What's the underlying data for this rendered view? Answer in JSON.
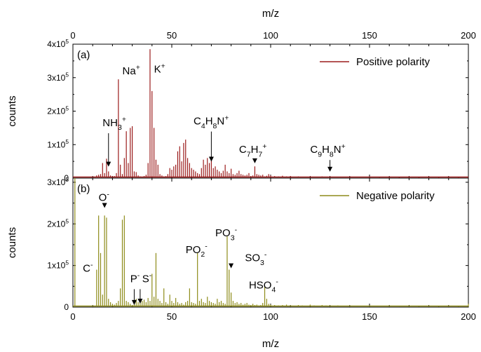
{
  "chart_data": [
    {
      "panel_label": "(a)",
      "type": "bar",
      "xlabel": "m/z",
      "ylabel": "counts",
      "xlim": [
        0,
        200
      ],
      "ylim": [
        0,
        400000
      ],
      "x_ticks": [
        "0",
        "50",
        "100",
        "150",
        "200"
      ],
      "y_ticks": [
        {
          "value": 0,
          "base": "0",
          "exp": ""
        },
        {
          "value": 100000,
          "base": "1x10",
          "exp": "5"
        },
        {
          "value": 200000,
          "base": "2x10",
          "exp": "5"
        },
        {
          "value": 300000,
          "base": "3x10",
          "exp": "5"
        },
        {
          "value": 400000,
          "base": "4x10",
          "exp": "5"
        }
      ],
      "legend": "Positive polarity",
      "legend_placement": "top-right",
      "color": "#9b1c1c",
      "series": [
        {
          "x": [
            12,
            13,
            14,
            15,
            16,
            17,
            18,
            19,
            20,
            21,
            22,
            23,
            24,
            25,
            26,
            27,
            28,
            29,
            30,
            31,
            32,
            33,
            34,
            35,
            36,
            37,
            38,
            39,
            40,
            41,
            42,
            43,
            44,
            45,
            46,
            47,
            48,
            49,
            50,
            51,
            52,
            53,
            54,
            55,
            56,
            57,
            58,
            59,
            60,
            61,
            62,
            63,
            64,
            65,
            66,
            67,
            68,
            69,
            70,
            71,
            72,
            73,
            74,
            75,
            76,
            77,
            78,
            79,
            80,
            81,
            82,
            83,
            84,
            85,
            86,
            87,
            88,
            89,
            90,
            91,
            92,
            93,
            94,
            95,
            96,
            97,
            98,
            99,
            100,
            102,
            104,
            106,
            108,
            110,
            112,
            114,
            116,
            118,
            120,
            122,
            124,
            126,
            128,
            130,
            132,
            134,
            136,
            138,
            140,
            145,
            150,
            155,
            160,
            165,
            170,
            175,
            180,
            185,
            190,
            195
          ],
          "y": [
            8000,
            10000,
            12000,
            45000,
            15000,
            58000,
            20000,
            8000,
            5000,
            6000,
            15000,
            295000,
            40000,
            12000,
            60000,
            140000,
            45000,
            150000,
            155000,
            20000,
            18000,
            8000,
            5000,
            4000,
            6000,
            10000,
            45000,
            385000,
            260000,
            150000,
            55000,
            40000,
            12000,
            8000,
            5000,
            6000,
            12000,
            30000,
            25000,
            35000,
            40000,
            80000,
            95000,
            50000,
            105000,
            115000,
            60000,
            45000,
            30000,
            25000,
            20000,
            15000,
            12000,
            30000,
            55000,
            40000,
            60000,
            45000,
            65000,
            30000,
            35000,
            25000,
            20000,
            15000,
            22000,
            40000,
            20000,
            15000,
            28000,
            12000,
            10000,
            15000,
            22000,
            12000,
            10000,
            8000,
            10000,
            15000,
            6000,
            8000,
            35000,
            12000,
            10000,
            8000,
            10000,
            5000,
            7000,
            12000,
            8000,
            6000,
            5000,
            7000,
            5000,
            6000,
            4000,
            5000,
            3000,
            4000,
            5000,
            3000,
            4000,
            5000,
            3000,
            4000,
            2500,
            3000,
            2500,
            2000,
            3000,
            2000,
            1500,
            1500,
            1000,
            1000,
            1000,
            800,
            800,
            600,
            600,
            500
          ]
        }
      ],
      "annotations": [
        {
          "x": 18,
          "y": 30000,
          "arrow": true,
          "parts": [
            [
              "NH",
              ""
            ],
            [
              "3",
              "sub"
            ],
            [
              "+",
              "sup"
            ]
          ],
          "tx": 15,
          "ty": 155000
        },
        {
          "x": 23,
          "y": 300000,
          "arrow": false,
          "parts": [
            [
              "Na",
              ""
            ],
            [
              "+",
              "sup"
            ]
          ],
          "tx": 25,
          "ty": 310000
        },
        {
          "x": 39,
          "y": 390000,
          "arrow": false,
          "parts": [
            [
              "K",
              ""
            ],
            [
              "+",
              "sup"
            ]
          ],
          "tx": 41,
          "ty": 315000
        },
        {
          "x": 70,
          "y": 45000,
          "arrow": true,
          "parts": [
            [
              "C",
              ""
            ],
            [
              "4",
              "sub"
            ],
            [
              "H",
              ""
            ],
            [
              "8",
              "sub"
            ],
            [
              "N",
              ""
            ],
            [
              "+",
              "sup"
            ]
          ],
          "tx": 61,
          "ty": 160000
        },
        {
          "x": 92,
          "y": 40000,
          "arrow": true,
          "parts": [
            [
              "C",
              ""
            ],
            [
              "7",
              "sub"
            ],
            [
              "H",
              ""
            ],
            [
              "7",
              "sub"
            ],
            [
              "+",
              "sup"
            ]
          ],
          "tx": 84,
          "ty": 75000
        },
        {
          "x": 130,
          "y": 15000,
          "arrow": true,
          "parts": [
            [
              "C",
              ""
            ],
            [
              "9",
              "sub"
            ],
            [
              "H",
              ""
            ],
            [
              "8",
              "sub"
            ],
            [
              "N",
              ""
            ],
            [
              "+",
              "sup"
            ]
          ],
          "tx": 120,
          "ty": 75000
        }
      ]
    },
    {
      "panel_label": "(b)",
      "type": "bar",
      "xlabel": "m/z",
      "ylabel": "counts",
      "xlim": [
        0,
        200
      ],
      "ylim": [
        0,
        310000
      ],
      "x_ticks": [
        "0",
        "50",
        "100",
        "150",
        "200"
      ],
      "y_ticks": [
        {
          "value": 0,
          "base": "0",
          "exp": ""
        },
        {
          "value": 100000,
          "base": "1x10",
          "exp": "5"
        },
        {
          "value": 200000,
          "base": "2x10",
          "exp": "5"
        },
        {
          "value": 300000,
          "base": "3x10",
          "exp": "5"
        }
      ],
      "legend": "Negative polarity",
      "legend_placement": "top-right",
      "color": "#8e8c1a",
      "series": [
        {
          "x": [
            1,
            12,
            13,
            14,
            15,
            16,
            17,
            18,
            19,
            20,
            21,
            22,
            23,
            24,
            25,
            26,
            27,
            28,
            29,
            30,
            31,
            32,
            33,
            34,
            35,
            36,
            37,
            38,
            39,
            40,
            41,
            42,
            43,
            44,
            45,
            46,
            47,
            48,
            49,
            50,
            51,
            52,
            53,
            54,
            55,
            56,
            57,
            58,
            59,
            60,
            61,
            62,
            63,
            64,
            65,
            66,
            67,
            68,
            69,
            70,
            71,
            72,
            73,
            74,
            75,
            76,
            77,
            78,
            79,
            80,
            81,
            82,
            83,
            84,
            85,
            86,
            87,
            88,
            89,
            90,
            91,
            92,
            93,
            94,
            95,
            96,
            97,
            98,
            99,
            100,
            102,
            104,
            106,
            108,
            110,
            112,
            114,
            116,
            118,
            120,
            122,
            124,
            126,
            128,
            130,
            132,
            134,
            136,
            138,
            140,
            145,
            150,
            155,
            160,
            165,
            170,
            175,
            180,
            185,
            190,
            195,
            200
          ],
          "y": [
            310000,
            90000,
            220000,
            130000,
            30000,
            220000,
            215000,
            20000,
            12000,
            8000,
            6000,
            10000,
            15000,
            45000,
            210000,
            220000,
            15000,
            12000,
            8000,
            5000,
            10000,
            20000,
            12000,
            10000,
            15000,
            18000,
            12000,
            22000,
            15000,
            80000,
            25000,
            130000,
            20000,
            15000,
            10000,
            45000,
            12000,
            8000,
            30000,
            15000,
            10000,
            22000,
            12000,
            8000,
            10000,
            6000,
            12000,
            15000,
            45000,
            12000,
            10000,
            8000,
            130000,
            15000,
            20000,
            12000,
            10000,
            25000,
            15000,
            12000,
            10000,
            8000,
            20000,
            12000,
            15000,
            10000,
            8000,
            170000,
            90000,
            35000,
            15000,
            10000,
            12000,
            8000,
            10000,
            6000,
            8000,
            10000,
            6000,
            5000,
            8000,
            5000,
            6000,
            4000,
            5000,
            10000,
            50000,
            20000,
            8000,
            6000,
            5000,
            4000,
            5000,
            6000,
            4000,
            3000,
            5000,
            4000,
            3000,
            6000,
            4000,
            3000,
            5000,
            4000,
            3000,
            2500,
            4000,
            3000,
            2000,
            2500,
            2000,
            1500,
            2000,
            1500,
            1500,
            1200,
            1000,
            1000,
            800,
            800,
            600,
            8000
          ]
        }
      ],
      "annotations": [
        {
          "x": 16,
          "y": 235000,
          "arrow": true,
          "parts": [
            [
              "O",
              ""
            ],
            [
              "-",
              "sup"
            ]
          ],
          "tx": 13,
          "ty": 255000
        },
        {
          "x": 12,
          "y": 90000,
          "arrow": false,
          "parts": [
            [
              "C",
              ""
            ],
            [
              "-",
              "sup"
            ]
          ],
          "tx": 5,
          "ty": 85000
        },
        {
          "x": 31,
          "y": 2000,
          "arrow": true,
          "parts": [
            [
              "P",
              ""
            ],
            [
              "-",
              "sup"
            ]
          ],
          "tx": 29,
          "ty": 60000
        },
        {
          "x": 34,
          "y": 5000,
          "arrow": true,
          "parts": [
            [
              "S",
              ""
            ],
            [
              "-",
              "sup"
            ]
          ],
          "tx": 35,
          "ty": 60000
        },
        {
          "x": 63,
          "y": 140000,
          "arrow": false,
          "parts": [
            [
              "PO",
              ""
            ],
            [
              "2",
              "sub"
            ],
            [
              "-",
              "sup"
            ]
          ],
          "tx": 57,
          "ty": 130000
        },
        {
          "x": 78,
          "y": 180000,
          "arrow": false,
          "parts": [
            [
              "PO",
              ""
            ],
            [
              "3",
              "sub"
            ],
            [
              "-",
              "sup"
            ]
          ],
          "tx": 72,
          "ty": 170000
        },
        {
          "x": 80,
          "y": 90000,
          "arrow": true,
          "parts": [
            [
              "SO",
              ""
            ],
            [
              "3",
              "sub"
            ],
            [
              "-",
              "sup"
            ]
          ],
          "tx": 87,
          "ty": 110000
        },
        {
          "x": 97,
          "y": 55000,
          "arrow": false,
          "parts": [
            [
              "HSO",
              ""
            ],
            [
              "4",
              "sub"
            ],
            [
              "-",
              "sup"
            ]
          ],
          "tx": 89,
          "ty": 45000
        }
      ]
    }
  ]
}
